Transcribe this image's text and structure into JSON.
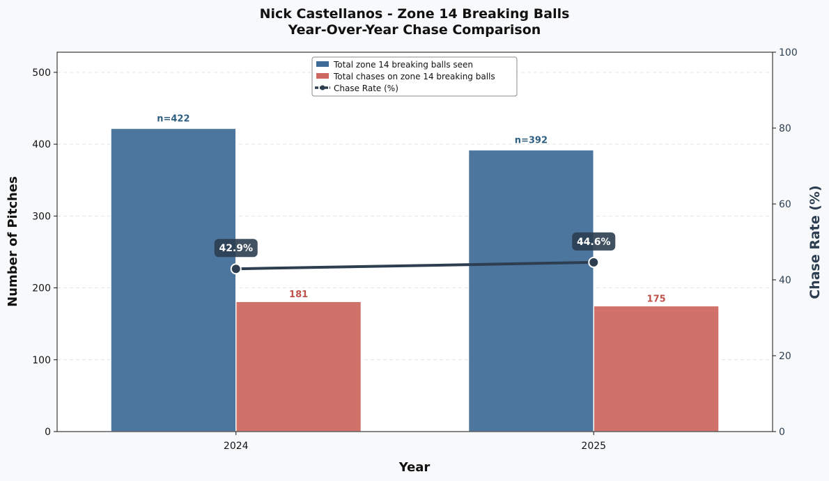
{
  "chart_data": {
    "type": "bar",
    "title_line1": "Nick Castellanos - Zone 14 Breaking Balls",
    "title_line2": "Year-Over-Year Chase Comparison",
    "xlabel": "Year",
    "ylabel": "Number of Pitches",
    "ylabel_right": "Chase Rate (%)",
    "categories": [
      "2024",
      "2025"
    ],
    "ylim": [
      0,
      528
    ],
    "yticks": [
      0,
      100,
      200,
      300,
      400,
      500
    ],
    "ylim_right": [
      0,
      100
    ],
    "yticks_right": [
      0,
      20,
      40,
      60,
      80,
      100
    ],
    "grid": true,
    "legend_position": "top-center",
    "series": [
      {
        "name": "Total zone 14 breaking balls seen",
        "kind": "bar",
        "color": "#3d6a96",
        "values": [
          422,
          392
        ],
        "labels": [
          "n=422",
          "n=392"
        ]
      },
      {
        "name": "Total chases on zone 14 breaking balls",
        "kind": "bar",
        "color": "#cd6962",
        "values": [
          181,
          175
        ],
        "labels": [
          "181",
          "175"
        ]
      },
      {
        "name": "Chase Rate (%)",
        "kind": "line",
        "axis": "right",
        "color": "#2c3e50",
        "values": [
          42.9,
          44.6
        ],
        "labels": [
          "42.9%",
          "44.6%"
        ]
      }
    ]
  }
}
